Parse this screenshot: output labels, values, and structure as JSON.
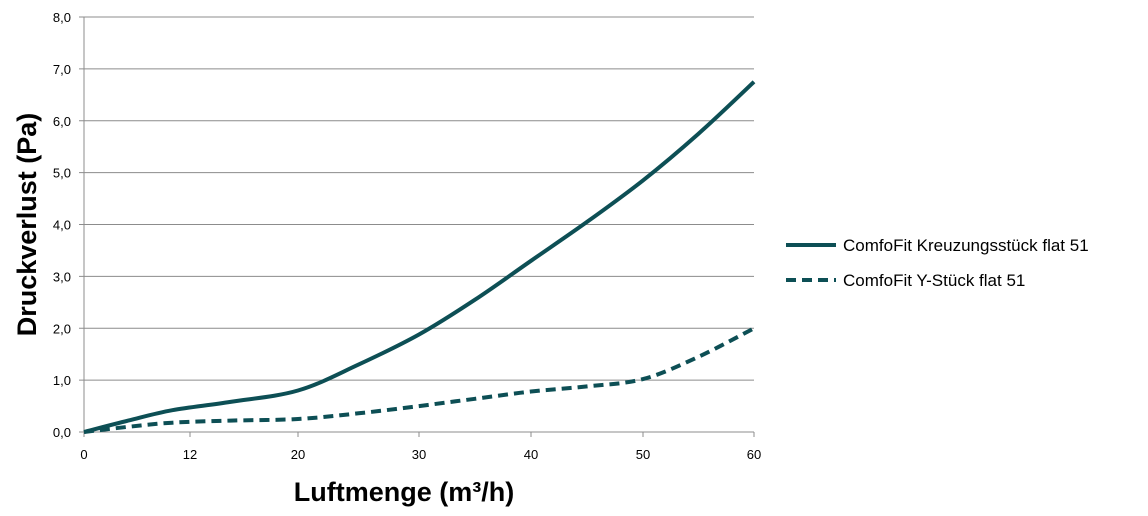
{
  "chart_data": {
    "type": "line",
    "xlabel": "Luftmenge (m³/h)",
    "ylabel": "Druckverlust (Pa)",
    "x_ticks": [
      "0",
      "12",
      "20",
      "30",
      "40",
      "50",
      "60"
    ],
    "y_ticks": [
      "0,0",
      "1,0",
      "2,0",
      "3,0",
      "4,0",
      "5,0",
      "6,0",
      "7,0",
      "8,0"
    ],
    "xlim": [
      0,
      60
    ],
    "ylim": [
      0,
      8
    ],
    "grid": "horizontal",
    "legend_position": "right",
    "series": [
      {
        "name": "ComfoFit Kreuzungsstück flat 51",
        "style": "solid",
        "color": "#0d4f55",
        "x": [
          0,
          5,
          10,
          15,
          20,
          25,
          30,
          35,
          40,
          45,
          50,
          55,
          60
        ],
        "y": [
          0,
          0.22,
          0.42,
          0.58,
          0.8,
          1.3,
          1.88,
          2.55,
          3.3,
          4.05,
          4.85,
          5.75,
          6.75
        ]
      },
      {
        "name": "ComfoFit Y-Stück flat 51",
        "style": "dashed",
        "color": "#0d4f55",
        "x": [
          0,
          5,
          10,
          15,
          20,
          25,
          30,
          35,
          40,
          45,
          50,
          55,
          60
        ],
        "y": [
          0,
          0.1,
          0.18,
          0.22,
          0.25,
          0.36,
          0.5,
          0.64,
          0.78,
          0.88,
          1.02,
          1.45,
          2.0
        ]
      }
    ]
  }
}
